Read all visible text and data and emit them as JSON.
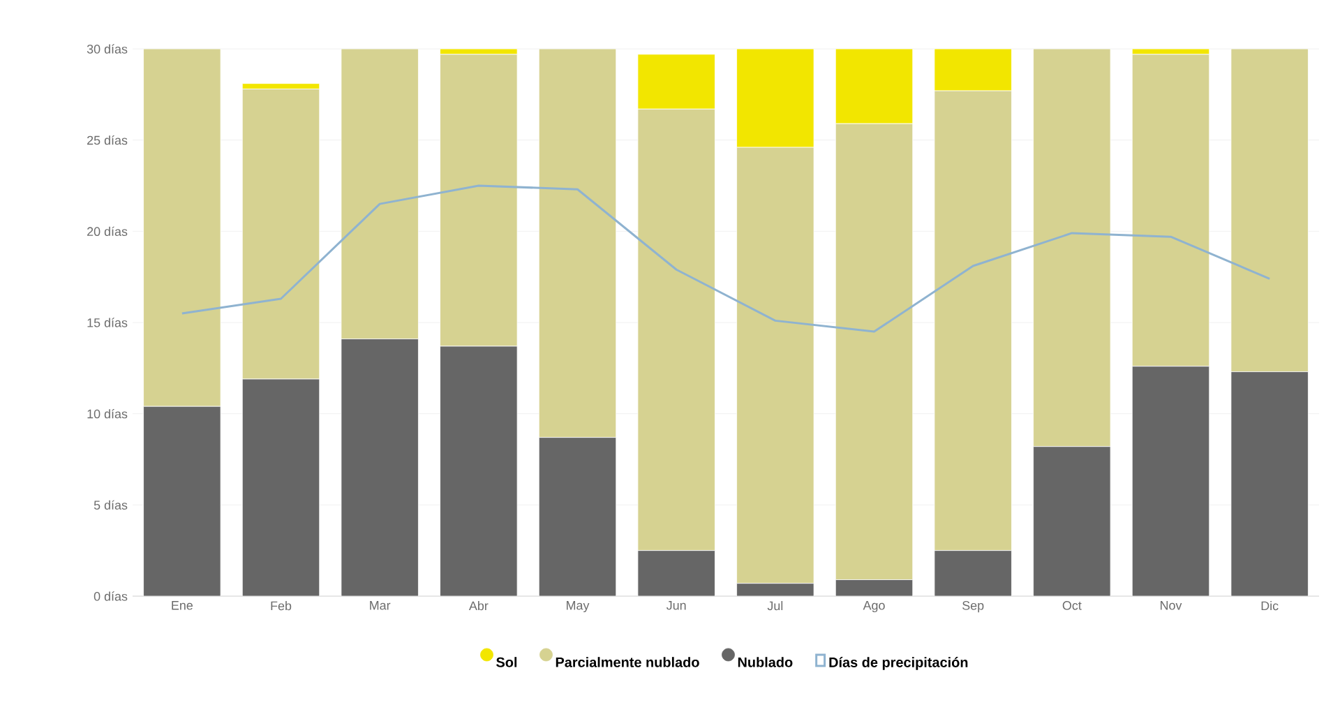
{
  "chart_data": {
    "type": "bar",
    "stacked": true,
    "categories": [
      "Ene",
      "Feb",
      "Mar",
      "Abr",
      "May",
      "Jun",
      "Jul",
      "Ago",
      "Sep",
      "Oct",
      "Nov",
      "Dic"
    ],
    "series": [
      {
        "name": "Nublado",
        "color": "#666666",
        "values": [
          10.4,
          11.9,
          14.1,
          13.7,
          8.7,
          2.5,
          0.7,
          0.9,
          2.5,
          8.2,
          12.6,
          12.3
        ]
      },
      {
        "name": "Parcialmente nublado",
        "color": "#d6d291",
        "values": [
          19.6,
          15.9,
          15.9,
          16.0,
          21.3,
          24.2,
          23.9,
          25.0,
          25.2,
          21.8,
          17.1,
          17.7
        ]
      },
      {
        "name": "Sol",
        "color": "#f2e600",
        "values": [
          0,
          0.3,
          0,
          0.3,
          0,
          3.0,
          5.4,
          4.1,
          2.3,
          0,
          0.3,
          0
        ]
      },
      {
        "name": "Días de precipitación",
        "type": "line",
        "color": "#8fb3d0",
        "values": [
          15.5,
          16.3,
          21.5,
          22.5,
          22.3,
          17.9,
          15.1,
          14.5,
          18.1,
          19.9,
          19.7,
          17.4
        ]
      }
    ],
    "ylim": [
      0,
      30
    ],
    "yticks": [
      {
        "value": 0,
        "label": "0 días"
      },
      {
        "value": 5,
        "label": "5 días"
      },
      {
        "value": 10,
        "label": "10 días"
      },
      {
        "value": 15,
        "label": "15 días"
      },
      {
        "value": 20,
        "label": "20 días"
      },
      {
        "value": 25,
        "label": "25 días"
      },
      {
        "value": 30,
        "label": "30 días"
      }
    ],
    "grid": "y",
    "legend": "bottom"
  }
}
